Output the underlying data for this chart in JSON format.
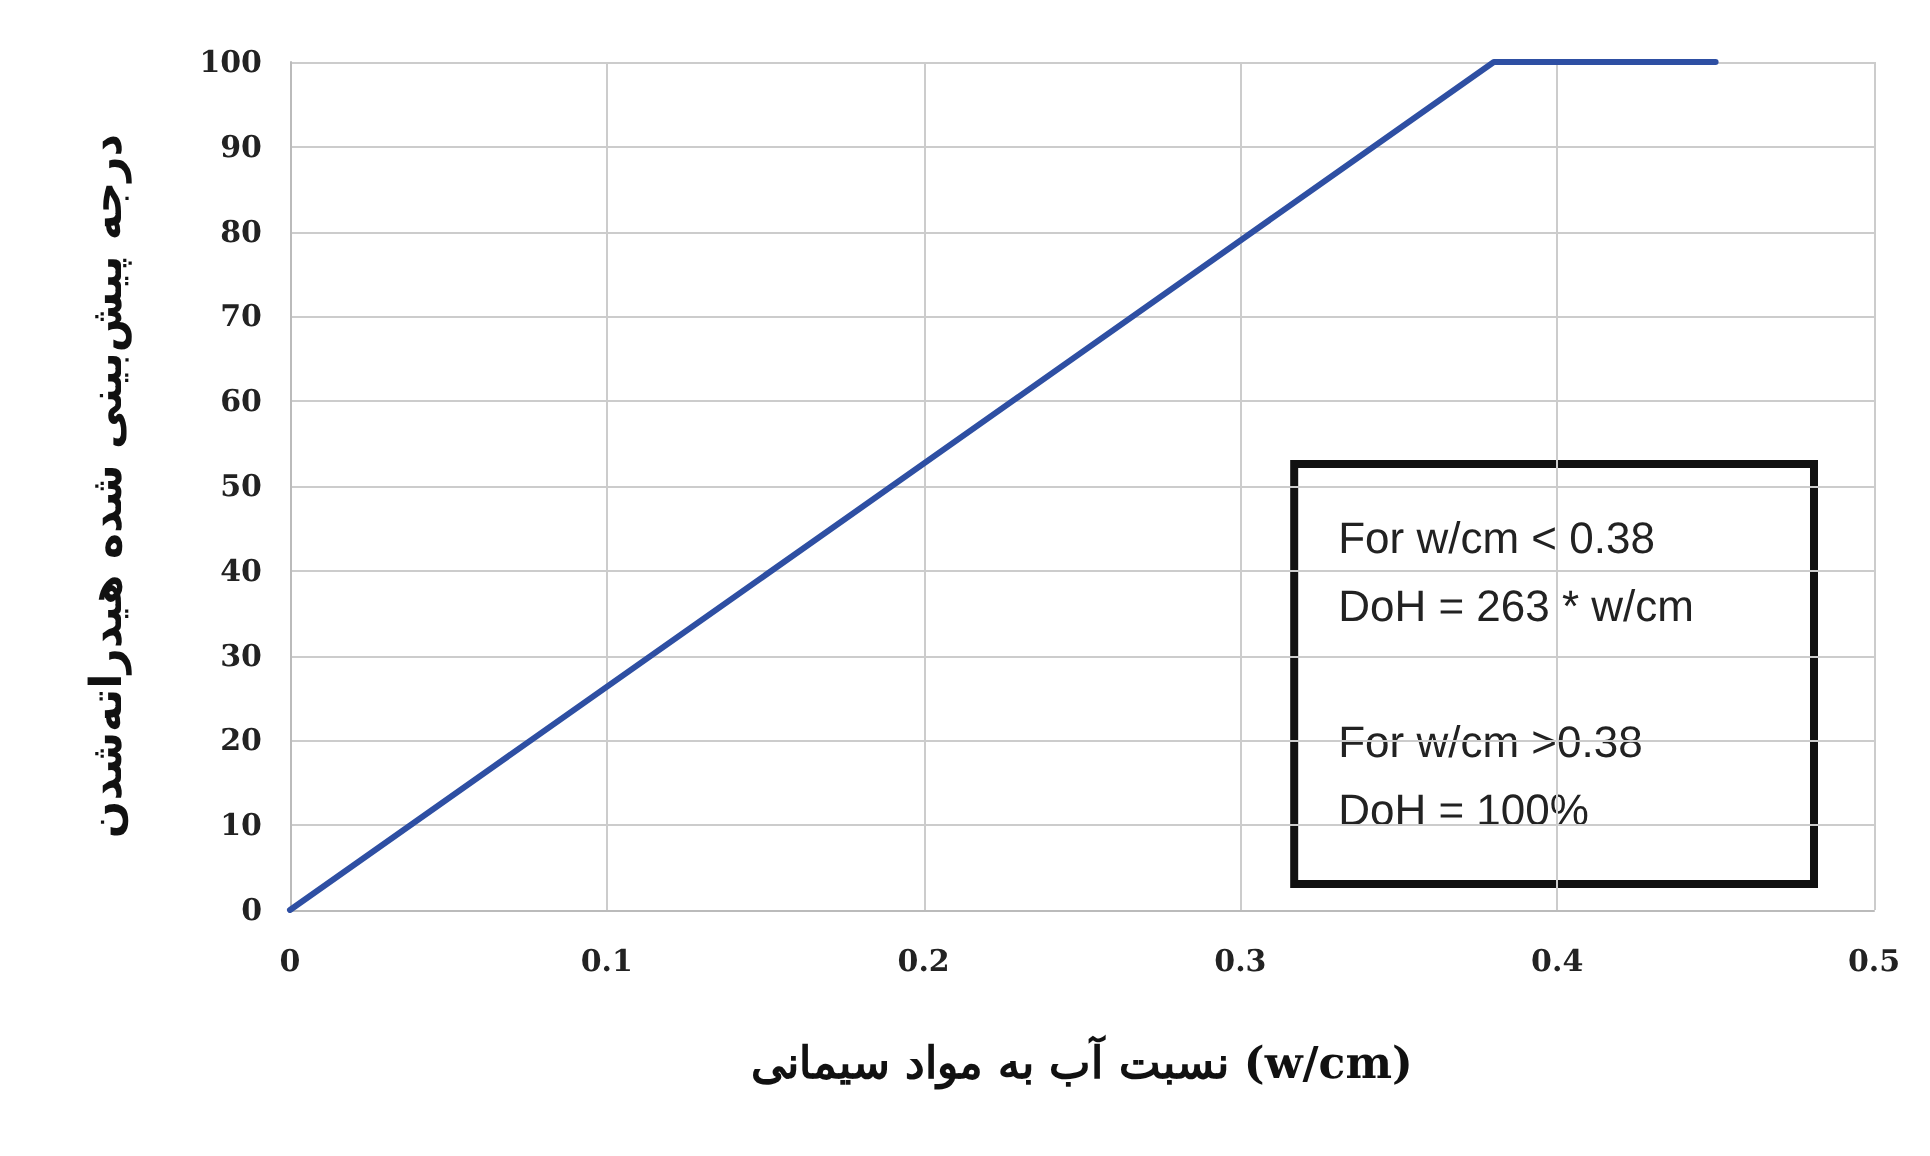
{
  "chart_data": {
    "type": "line",
    "xlabel": "نسبت آب به مواد سیمانی (w/cm)",
    "ylabel": "درجه پیش‌بینی شده هیدراته‌شدن",
    "x": [
      0,
      0.38,
      0.45
    ],
    "series": [
      {
        "color": "#2e4fa3",
        "values": [
          0,
          100,
          100
        ]
      }
    ],
    "xlim": [
      0,
      0.5
    ],
    "xticks": [
      0,
      0.1,
      0.2,
      0.3,
      0.4,
      0.5
    ],
    "ylim": [
      0,
      100
    ],
    "yticks": [
      0,
      10,
      20,
      30,
      40,
      50,
      60,
      70,
      80,
      90,
      100
    ],
    "grid": true,
    "marker": "none",
    "line_style": "solid",
    "annotations": [
      "For w/cm < 0.38\nDoH = 263 * w/cm\n\nFor w/cm >0.38\nDoH = 100%"
    ]
  }
}
